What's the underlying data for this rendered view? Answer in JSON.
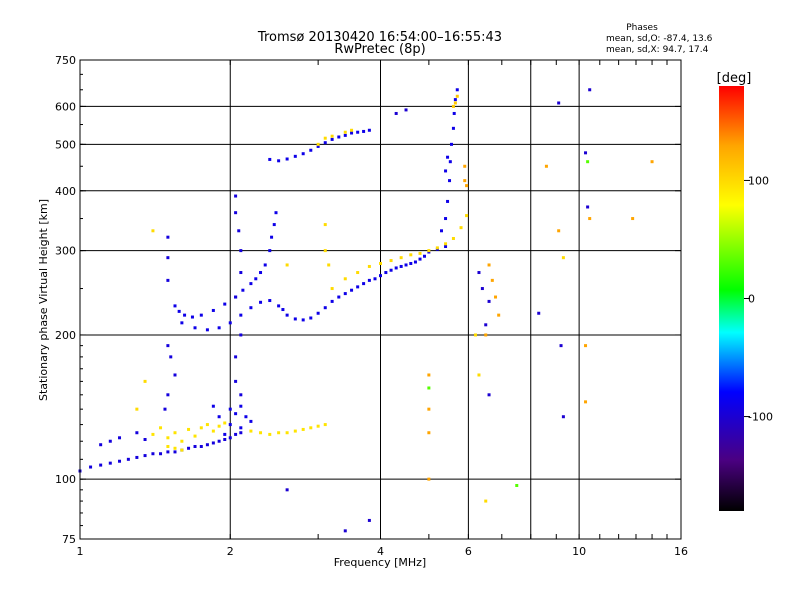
{
  "chart_data": {
    "type": "scatter",
    "title": "Tromsø 20130420 16:54:00–16:55:43",
    "subtitle": "RwPretec (8p)",
    "stats": {
      "heading": "Phases",
      "line1": "mean, sd,O: -87.4, 13.6",
      "line2": "mean, sd,X:  94.7, 17.4"
    },
    "xlabel": "Frequency [MHz]",
    "ylabel": "Stationary phase Virtual Height [km]",
    "x_scale": "log",
    "y_scale": "log",
    "xlim": [
      1,
      16
    ],
    "ylim": [
      75,
      750
    ],
    "x_ticks": [
      1,
      2,
      4,
      6,
      10,
      16
    ],
    "x_tick_labels": [
      "1",
      "2",
      "4",
      "6",
      "10",
      "16"
    ],
    "x_grid": [
      2,
      4,
      6,
      8,
      10
    ],
    "y_ticks": [
      75,
      100,
      200,
      300,
      400,
      500,
      600,
      750
    ],
    "y_tick_labels": [
      "75",
      "100",
      "200",
      "300",
      "400",
      "500",
      "600",
      "750"
    ],
    "grid": true,
    "colorbar": {
      "label": "[deg]",
      "range": [
        -180,
        180
      ],
      "ticks": [
        100,
        0,
        -100
      ],
      "tick_labels": [
        "100",
        "0",
        "-100"
      ],
      "colors": [
        "#000000",
        "#4b0082",
        "#0000ff",
        "#00ffff",
        "#00ff00",
        "#ffff00",
        "#ffa500",
        "#ff0000"
      ]
    },
    "series": [
      {
        "name": "",
        "phase": -95,
        "points": [
          [
            1.0,
            104
          ],
          [
            1.05,
            106
          ],
          [
            1.1,
            107
          ],
          [
            1.15,
            108
          ],
          [
            1.2,
            109
          ],
          [
            1.25,
            110
          ],
          [
            1.3,
            111
          ],
          [
            1.35,
            112
          ],
          [
            1.4,
            113
          ],
          [
            1.45,
            113
          ],
          [
            1.5,
            114
          ],
          [
            1.55,
            114
          ],
          [
            1.6,
            115
          ],
          [
            1.65,
            116
          ],
          [
            1.7,
            117
          ],
          [
            1.75,
            117
          ],
          [
            1.8,
            118
          ],
          [
            1.85,
            119
          ],
          [
            1.9,
            120
          ],
          [
            1.95,
            121
          ],
          [
            2.0,
            122
          ],
          [
            2.05,
            124
          ],
          [
            2.1,
            125
          ],
          [
            1.1,
            118
          ],
          [
            1.15,
            120
          ],
          [
            1.2,
            122
          ],
          [
            1.3,
            125
          ],
          [
            1.35,
            121
          ]
        ]
      },
      {
        "name": "",
        "phase": 95,
        "points": [
          [
            1.5,
            117
          ],
          [
            1.55,
            116
          ],
          [
            1.6,
            115
          ],
          [
            1.5,
            122
          ],
          [
            1.55,
            125
          ],
          [
            1.6,
            120
          ],
          [
            1.65,
            127
          ],
          [
            1.7,
            123
          ],
          [
            1.75,
            128
          ],
          [
            1.8,
            130
          ],
          [
            1.85,
            126
          ],
          [
            1.9,
            129
          ],
          [
            1.95,
            131
          ],
          [
            1.45,
            128
          ],
          [
            1.4,
            124
          ]
        ]
      },
      {
        "name": "",
        "phase": -90,
        "points": [
          [
            1.95,
            124
          ],
          [
            2.0,
            130
          ],
          [
            2.05,
            137
          ],
          [
            2.1,
            142
          ],
          [
            2.15,
            135
          ],
          [
            2.1,
            128
          ],
          [
            2.0,
            140
          ],
          [
            1.9,
            135
          ],
          [
            1.85,
            142
          ],
          [
            2.2,
            132
          ]
        ]
      },
      {
        "name": "",
        "phase": 95,
        "points": [
          [
            2.4,
            124
          ],
          [
            2.5,
            125
          ],
          [
            2.6,
            125
          ],
          [
            2.7,
            126
          ],
          [
            2.8,
            127
          ],
          [
            2.9,
            128
          ],
          [
            3.0,
            129
          ],
          [
            3.1,
            130
          ],
          [
            2.2,
            126
          ],
          [
            2.3,
            125
          ]
        ]
      },
      {
        "name": "",
        "phase": -90,
        "points": [
          [
            1.55,
            230
          ],
          [
            1.58,
            224
          ],
          [
            1.62,
            220
          ],
          [
            1.68,
            218
          ],
          [
            1.75,
            220
          ],
          [
            1.85,
            225
          ],
          [
            1.95,
            232
          ],
          [
            2.05,
            240
          ],
          [
            2.12,
            248
          ],
          [
            2.2,
            256
          ],
          [
            2.25,
            262
          ],
          [
            2.3,
            270
          ],
          [
            2.35,
            280
          ],
          [
            2.4,
            300
          ],
          [
            2.42,
            320
          ],
          [
            2.45,
            340
          ],
          [
            2.47,
            360
          ]
        ]
      },
      {
        "name": "",
        "phase": -90,
        "points": [
          [
            1.6,
            212
          ],
          [
            1.7,
            207
          ],
          [
            1.8,
            205
          ],
          [
            1.9,
            207
          ],
          [
            2.0,
            212
          ],
          [
            2.1,
            220
          ],
          [
            2.2,
            228
          ],
          [
            2.3,
            234
          ],
          [
            2.4,
            236
          ],
          [
            2.5,
            230
          ],
          [
            2.55,
            226
          ],
          [
            2.6,
            220
          ],
          [
            2.7,
            216
          ],
          [
            2.8,
            215
          ],
          [
            2.9,
            217
          ],
          [
            3.0,
            222
          ],
          [
            3.1,
            228
          ],
          [
            3.2,
            235
          ],
          [
            3.3,
            240
          ],
          [
            3.4,
            244
          ],
          [
            3.5,
            248
          ],
          [
            3.6,
            252
          ],
          [
            3.7,
            256
          ],
          [
            3.8,
            260
          ],
          [
            3.9,
            262
          ],
          [
            4.0,
            266
          ],
          [
            4.1,
            270
          ],
          [
            4.2,
            273
          ],
          [
            4.3,
            276
          ],
          [
            4.4,
            278
          ],
          [
            4.5,
            280
          ],
          [
            4.6,
            282
          ],
          [
            4.7,
            284
          ],
          [
            4.8,
            288
          ],
          [
            4.9,
            292
          ],
          [
            5.0,
            298
          ],
          [
            5.2,
            302
          ],
          [
            5.4,
            306
          ]
        ]
      },
      {
        "name": "",
        "phase": 100,
        "points": [
          [
            3.2,
            250
          ],
          [
            3.4,
            262
          ],
          [
            3.6,
            270
          ],
          [
            3.8,
            278
          ],
          [
            4.0,
            282
          ],
          [
            4.2,
            286
          ],
          [
            4.4,
            290
          ],
          [
            4.6,
            294
          ],
          [
            4.8,
            296
          ],
          [
            5.0,
            300
          ],
          [
            5.2,
            304
          ],
          [
            5.4,
            310
          ],
          [
            5.6,
            318
          ],
          [
            5.8,
            335
          ],
          [
            5.95,
            355
          ],
          [
            3.1,
            300
          ],
          [
            3.15,
            280
          ]
        ]
      },
      {
        "name": "",
        "phase": -95,
        "points": [
          [
            1.5,
            320
          ],
          [
            1.5,
            290
          ],
          [
            1.5,
            260
          ],
          [
            1.5,
            190
          ],
          [
            1.52,
            180
          ],
          [
            1.55,
            165
          ],
          [
            1.5,
            150
          ],
          [
            1.48,
            140
          ],
          [
            2.05,
            390
          ],
          [
            2.05,
            360
          ],
          [
            2.08,
            330
          ],
          [
            2.1,
            300
          ],
          [
            2.1,
            270
          ],
          [
            2.05,
            240
          ],
          [
            2.1,
            200
          ],
          [
            2.05,
            180
          ],
          [
            2.05,
            160
          ],
          [
            2.1,
            150
          ]
        ]
      },
      {
        "name": "",
        "phase": -90,
        "points": [
          [
            2.4,
            465
          ],
          [
            2.5,
            462
          ],
          [
            2.6,
            466
          ],
          [
            2.7,
            472
          ],
          [
            2.8,
            478
          ],
          [
            2.9,
            486
          ],
          [
            3.0,
            495
          ],
          [
            3.1,
            504
          ],
          [
            3.2,
            512
          ],
          [
            3.3,
            518
          ],
          [
            3.4,
            522
          ],
          [
            3.5,
            528
          ],
          [
            3.6,
            530
          ],
          [
            3.7,
            532
          ],
          [
            3.8,
            535
          ]
        ]
      },
      {
        "name": "",
        "phase": 100,
        "points": [
          [
            3.0,
            500
          ],
          [
            3.1,
            515
          ],
          [
            3.2,
            520
          ],
          [
            3.4,
            530
          ],
          [
            3.5,
            535
          ]
        ]
      },
      {
        "name": "",
        "phase": -90,
        "points": [
          [
            5.3,
            330
          ],
          [
            5.4,
            350
          ],
          [
            5.45,
            380
          ],
          [
            5.5,
            420
          ],
          [
            5.52,
            460
          ],
          [
            5.55,
            500
          ],
          [
            5.6,
            540
          ],
          [
            5.62,
            580
          ],
          [
            5.65,
            620
          ],
          [
            5.7,
            650
          ],
          [
            5.45,
            470
          ],
          [
            5.4,
            440
          ]
        ]
      },
      {
        "name": "",
        "phase": 110,
        "points": [
          [
            5.6,
            600
          ],
          [
            5.7,
            630
          ],
          [
            5.65,
            610
          ]
        ]
      },
      {
        "name": "",
        "phase": 130,
        "points": [
          [
            5.0,
            100
          ],
          [
            5.0,
            125
          ],
          [
            5.0,
            140
          ],
          [
            5.0,
            165
          ],
          [
            5.9,
            450
          ],
          [
            5.95,
            410
          ],
          [
            6.6,
            280
          ],
          [
            6.7,
            260
          ],
          [
            6.8,
            240
          ],
          [
            6.9,
            220
          ],
          [
            6.5,
            200
          ],
          [
            9.1,
            330
          ],
          [
            10.3,
            190
          ],
          [
            10.3,
            145
          ],
          [
            10.5,
            350
          ],
          [
            12.8,
            350
          ],
          [
            14.0,
            460
          ],
          [
            8.6,
            450
          ],
          [
            5.9,
            420
          ]
        ]
      },
      {
        "name": "",
        "phase": 100,
        "points": [
          [
            6.2,
            200
          ],
          [
            6.3,
            165
          ],
          [
            6.5,
            90
          ],
          [
            9.3,
            290
          ],
          [
            1.3,
            140
          ],
          [
            1.35,
            160
          ],
          [
            1.4,
            330
          ],
          [
            2.6,
            280
          ],
          [
            3.1,
            340
          ]
        ]
      },
      {
        "name": "",
        "phase": -100,
        "points": [
          [
            6.3,
            270
          ],
          [
            6.4,
            250
          ],
          [
            6.5,
            210
          ],
          [
            6.6,
            235
          ],
          [
            8.3,
            222
          ],
          [
            9.2,
            190
          ],
          [
            9.3,
            135
          ],
          [
            9.1,
            610
          ],
          [
            10.3,
            480
          ],
          [
            10.4,
            370
          ],
          [
            10.5,
            650
          ],
          [
            4.3,
            580
          ],
          [
            4.5,
            590
          ],
          [
            3.4,
            78
          ],
          [
            3.8,
            82
          ],
          [
            2.6,
            95
          ],
          [
            6.6,
            150
          ]
        ]
      },
      {
        "name": "",
        "phase": 30,
        "points": [
          [
            10.4,
            460
          ],
          [
            7.5,
            97
          ],
          [
            5.0,
            155
          ]
        ]
      }
    ]
  }
}
